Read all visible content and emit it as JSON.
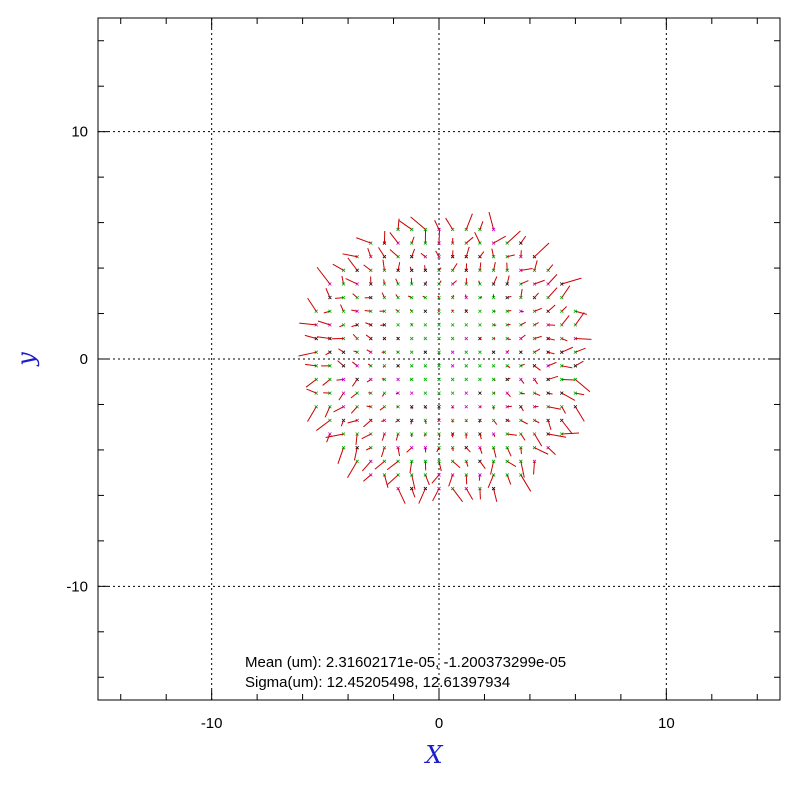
{
  "chart_data": {
    "type": "vector_field",
    "xlabel": "X",
    "ylabel": "y",
    "xlim": [
      -15,
      15
    ],
    "ylim": [
      -15,
      15
    ],
    "grid": true,
    "xticks": [
      -10,
      0,
      10
    ],
    "yticks": [
      -10,
      0,
      10
    ],
    "xtick_labels": [
      "-10",
      "0",
      "10"
    ],
    "ytick_labels": [
      "-10",
      "0",
      "10"
    ],
    "annotations": [
      "Mean (um): 2.31602171e-05, -1.200373299e-05",
      "Sigma(um): 12.45205498, 12.61397934"
    ],
    "grid_spacing": 0.6,
    "field_center": [
      0.3,
      0.0
    ],
    "field_radius": 6.3,
    "colors": {
      "vector": "#cc0000",
      "marker_primary": "#00aa00",
      "marker_secondary": "#cc00cc",
      "grid": "#000000",
      "axis_title": "#1d1dcc"
    }
  }
}
